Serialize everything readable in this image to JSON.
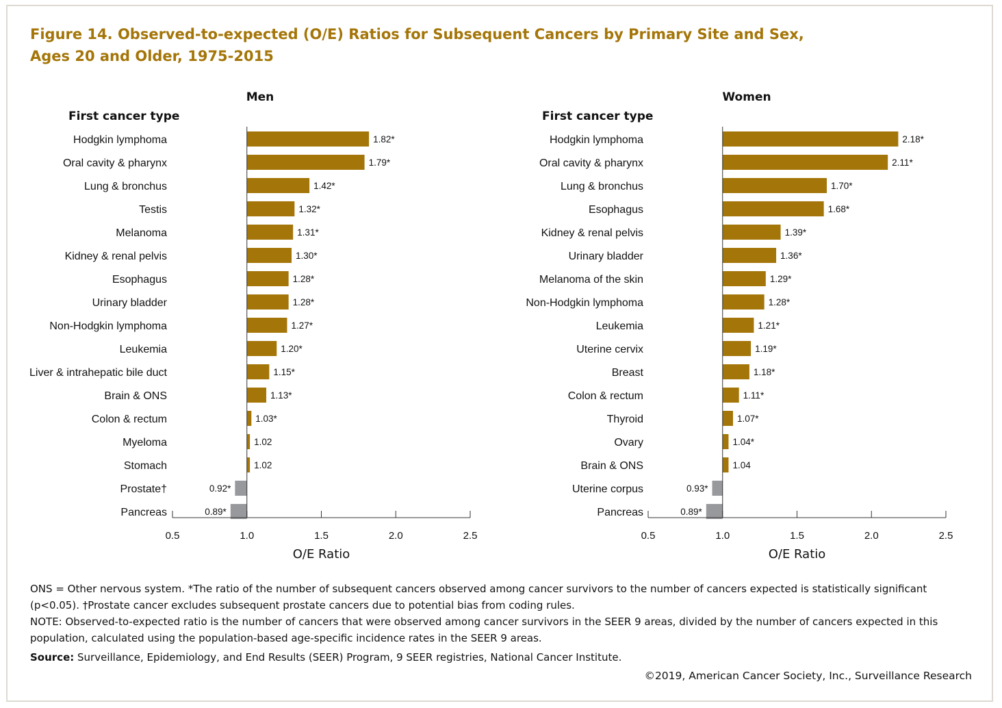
{
  "title": "Figure 14. Observed-to-expected (O/E) Ratios for Subsequent Cancers by Primary Site and Sex,\nAges 20 and Older, 1975-2015",
  "colors": {
    "significant": "#a47508",
    "below_one": "#98999c",
    "title": "#a47508"
  },
  "chart_data": [
    {
      "type": "bar",
      "orientation": "horizontal",
      "panel_title": "Men",
      "category_header": "First cancer type",
      "xlabel": "O/E Ratio",
      "xlim": [
        0.5,
        2.5
      ],
      "baseline": 1.0,
      "ticks": [
        0.5,
        1.0,
        1.5,
        2.0,
        2.5
      ],
      "tick_labels": [
        "0.5",
        "1.0",
        "1.5",
        "2.0",
        "2.5"
      ],
      "categories": [
        "Hodgkin lymphoma",
        "Oral cavity & pharynx",
        "Lung & bronchus",
        "Testis",
        "Melanoma",
        "Kidney & renal pelvis",
        "Esophagus",
        "Urinary bladder",
        "Non-Hodgkin lymphoma",
        "Leukemia",
        "Liver & intrahepatic bile duct",
        "Brain & ONS",
        "Colon & rectum",
        "Myeloma",
        "Stomach",
        "Prostate†",
        "Pancreas"
      ],
      "values": [
        1.82,
        1.79,
        1.42,
        1.32,
        1.31,
        1.3,
        1.28,
        1.28,
        1.27,
        1.2,
        1.15,
        1.13,
        1.03,
        1.02,
        1.02,
        0.92,
        0.89
      ],
      "labels": [
        "1.82*",
        "1.79*",
        "1.42*",
        "1.32*",
        "1.31*",
        "1.30*",
        "1.28*",
        "1.28*",
        "1.27*",
        "1.20*",
        "1.15*",
        "1.13*",
        "1.03*",
        "1.02",
        "1.02",
        "0.92*",
        "0.89*"
      ]
    },
    {
      "type": "bar",
      "orientation": "horizontal",
      "panel_title": "Women",
      "category_header": "First cancer type",
      "xlabel": "O/E Ratio",
      "xlim": [
        0.5,
        2.5
      ],
      "baseline": 1.0,
      "ticks": [
        0.5,
        1.0,
        1.5,
        2.0,
        2.5
      ],
      "tick_labels": [
        "0.5",
        "1.0",
        "1.5",
        "2.0",
        "2.5"
      ],
      "categories": [
        "Hodgkin lymphoma",
        "Oral cavity & pharynx",
        "Lung & bronchus",
        "Esophagus",
        "Kidney & renal pelvis",
        "Urinary bladder",
        "Melanoma of the skin",
        "Non-Hodgkin lymphoma",
        "Leukemia",
        "Uterine cervix",
        "Breast",
        "Colon & rectum",
        "Thyroid",
        "Ovary",
        "Brain & ONS",
        "Uterine corpus",
        "Pancreas"
      ],
      "values": [
        2.18,
        2.11,
        1.7,
        1.68,
        1.39,
        1.36,
        1.29,
        1.28,
        1.21,
        1.19,
        1.18,
        1.11,
        1.07,
        1.04,
        1.04,
        0.93,
        0.89
      ],
      "labels": [
        "2.18*",
        "2.11*",
        "1.70*",
        "1.68*",
        "1.39*",
        "1.36*",
        "1.29*",
        "1.28*",
        "1.21*",
        "1.19*",
        "1.18*",
        "1.11*",
        "1.07*",
        "1.04*",
        "1.04",
        "0.93*",
        "0.89*"
      ]
    }
  ],
  "footnotes": {
    "line1": "ONS = Other nervous system. *The ratio of the number of subsequent cancers observed among cancer survivors to the number of cancers expected is statistically significant (p<0.05). †Prostate cancer excludes subsequent prostate cancers due to potential bias from coding rules.",
    "line2": "NOTE: Observed-to-expected ratio is the number of cancers that were observed among cancer survivors in the SEER 9 areas, divided by the number of cancers expected in this population, calculated using the population-based age-specific incidence rates in the SEER 9 areas.",
    "source_label": "Source:",
    "source_text": "Surveillance, Epidemiology, and End Results (SEER) Program, 9 SEER registries, National Cancer Institute."
  },
  "copyright": "©2019, American Cancer Society, Inc., Surveillance Research"
}
